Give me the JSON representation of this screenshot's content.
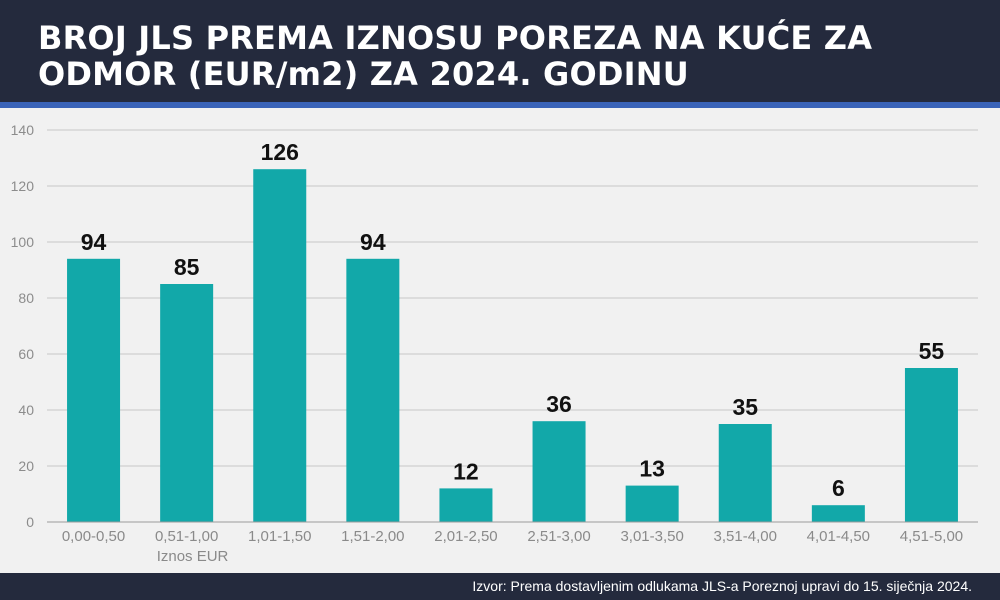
{
  "title": "BROJ JLS PREMA IZNOSU POREZA NA KUĆE ZA ODMOR (EUR/m2) ZA 2024. GODINU",
  "source": "Izvor: Prema dostavljenim odlukama JLS-a Poreznoj upravi do 15. siječnja 2024.",
  "colors": {
    "bar": "#12a8a9",
    "header": "#242a3d",
    "stripe": "#3a63b8",
    "background": "#f1f1f1"
  },
  "chart_data": {
    "type": "bar",
    "title": "BROJ JLS PREMA IZNOSU POREZA NA KUĆE ZA ODMOR (EUR/m2) ZA 2024. GODINU",
    "xlabel": "Iznos EUR",
    "ylabel": "",
    "categories": [
      "0,00-0,50",
      "0,51-1,00",
      "1,01-1,50",
      "1,51-2,00",
      "2,01-2,50",
      "2,51-3,00",
      "3,01-3,50",
      "3,51-4,00",
      "4,01-4,50",
      "4,51-5,00"
    ],
    "values": [
      94,
      85,
      126,
      94,
      12,
      36,
      13,
      35,
      6,
      55
    ],
    "ylim": [
      0,
      140
    ],
    "yticks": [
      0,
      20,
      40,
      60,
      80,
      100,
      120,
      140
    ],
    "grid": true,
    "legend": "none",
    "data_labels": true
  }
}
